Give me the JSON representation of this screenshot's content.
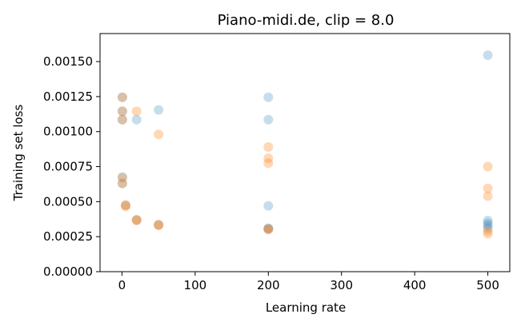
{
  "chart_data": {
    "type": "scatter",
    "title": "Piano-midi.de, clip = 8.0",
    "xlabel": "Learning rate",
    "ylabel": "Training set loss",
    "xlim": [
      -30,
      530
    ],
    "ylim": [
      0,
      0.0017
    ],
    "xticks": [
      0,
      100,
      200,
      300,
      400,
      500
    ],
    "xtick_labels": [
      "0",
      "100",
      "200",
      "300",
      "400",
      "500"
    ],
    "yticks": [
      0,
      0.00025,
      0.0005,
      0.00075,
      0.001,
      0.00125,
      0.0015
    ],
    "ytick_labels": [
      "0.00000",
      "0.00025",
      "0.00050",
      "0.00075",
      "0.00100",
      "0.00125",
      "0.00150"
    ],
    "grid": false,
    "series": [
      {
        "color": "#1f77b4",
        "opacity": 0.25,
        "points": [
          [
            0.5,
            0.001245
          ],
          [
            0.5,
            0.001145
          ],
          [
            0.5,
            0.001085
          ],
          [
            0.5,
            0.000675
          ],
          [
            0.5,
            0.00063
          ],
          [
            5,
            0.000475
          ],
          [
            20,
            0.00037
          ],
          [
            20,
            0.001085
          ],
          [
            50,
            0.000335
          ],
          [
            50,
            0.001155
          ],
          [
            200,
            0.001245
          ],
          [
            200,
            0.001085
          ],
          [
            200,
            0.00047
          ],
          [
            200,
            0.00031
          ],
          [
            200,
            0.000305
          ],
          [
            500,
            0.001545
          ],
          [
            500,
            0.000365
          ],
          [
            500,
            0.000345
          ],
          [
            500,
            0.00033
          ],
          [
            500,
            0.00031
          ]
        ]
      },
      {
        "color": "#ff7f0e",
        "opacity": 0.3,
        "points": [
          [
            0.5,
            0.001245
          ],
          [
            0.5,
            0.001145
          ],
          [
            0.5,
            0.001085
          ],
          [
            0.5,
            0.00067
          ],
          [
            0.5,
            0.00063
          ],
          [
            5,
            0.000475
          ],
          [
            5,
            0.000465
          ],
          [
            20,
            0.001145
          ],
          [
            20,
            0.00037
          ],
          [
            20,
            0.000365
          ],
          [
            50,
            0.00098
          ],
          [
            50,
            0.000335
          ],
          [
            50,
            0.00033
          ],
          [
            200,
            0.00089
          ],
          [
            200,
            0.00081
          ],
          [
            200,
            0.000775
          ],
          [
            200,
            0.000305
          ],
          [
            200,
            0.0003
          ],
          [
            500,
            0.00075
          ],
          [
            500,
            0.000595
          ],
          [
            500,
            0.00054
          ],
          [
            500,
            0.00029
          ],
          [
            500,
            0.00027
          ]
        ]
      }
    ]
  }
}
